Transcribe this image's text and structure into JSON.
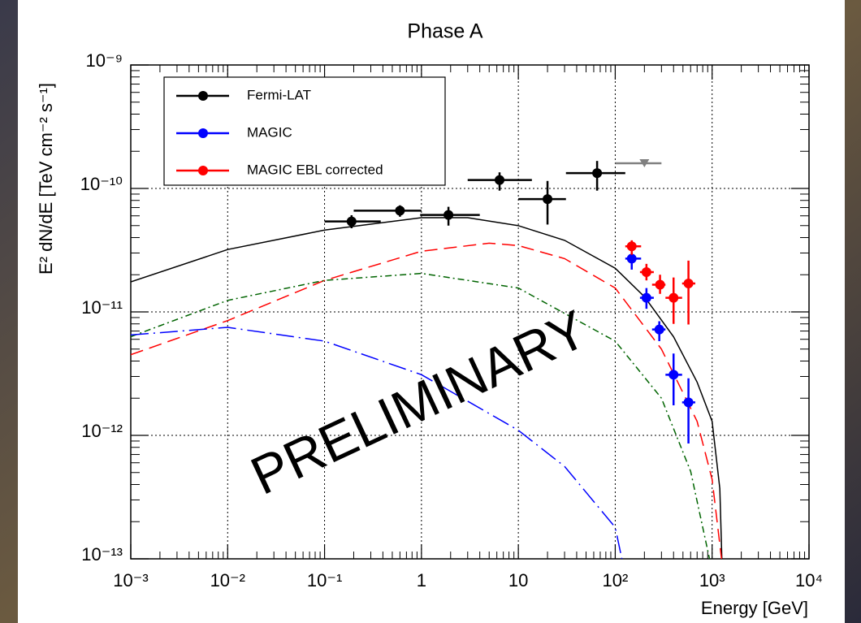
{
  "chart_data": {
    "type": "scatter",
    "title": "Phase A",
    "xlabel": "Energy [GeV]",
    "ylabel": "E² dN/dE [TeV cm⁻² s⁻¹]",
    "annotation": "PRELIMINARY",
    "log_x": true,
    "log_y": true,
    "grid": true,
    "legend": "upper left",
    "xlim": [
      0.001,
      10000
    ],
    "ylim": [
      1e-13,
      1e-09
    ],
    "xticks": [
      {
        "value": 0.001,
        "label": "10⁻³"
      },
      {
        "value": 0.01,
        "label": "10⁻²"
      },
      {
        "value": 0.1,
        "label": "10⁻¹"
      },
      1,
      10,
      {
        "value": 100,
        "label": "10²"
      },
      {
        "value": 1000,
        "label": "10³"
      },
      {
        "value": 10000,
        "label": "10⁴"
      }
    ],
    "yticks": [
      {
        "value": 1e-13,
        "label": "10⁻¹³"
      },
      {
        "value": 1e-12,
        "label": "10⁻¹²"
      },
      {
        "value": 1e-11,
        "label": "10⁻¹¹"
      },
      {
        "value": 1e-10,
        "label": "10⁻¹⁰"
      },
      {
        "value": 1e-09,
        "label": "10⁻⁹"
      }
    ],
    "series": [
      {
        "name": "Fermi-LAT",
        "color": "#000000",
        "x": [
          0.19,
          0.6,
          1.9,
          6.4,
          20,
          65
        ],
        "x_low": [
          0.1,
          0.2,
          0.97,
          3.0,
          10,
          31
        ],
        "x_high": [
          0.38,
          1.0,
          4.0,
          13.8,
          31,
          127
        ],
        "values": [
          5.4e-11,
          6.6e-11,
          6.1e-11,
          1.17e-10,
          8.2e-11,
          1.33e-10
        ],
        "y_low": [
          4.76e-11,
          5.9e-11,
          5e-11,
          9.6e-11,
          5.1e-11,
          9.6e-11
        ],
        "y_high": [
          6.07e-11,
          7.3e-11,
          7.1e-11,
          1.35e-10,
          1.15e-10,
          1.67e-10
        ]
      },
      {
        "name": "MAGIC",
        "color": "#0000ff",
        "x": [
          148,
          210,
          285,
          400,
          570
        ],
        "x_low": [
          127,
          180,
          240,
          330,
          490
        ],
        "x_high": [
          185,
          250,
          330,
          490,
          670
        ],
        "values": [
          2.7e-11,
          1.3e-11,
          7.2e-12,
          3.1e-12,
          1.85e-12
        ],
        "y_low": [
          2.2e-11,
          1.06e-11,
          5.8e-12,
          1.75e-12,
          8.6e-13
        ],
        "y_high": [
          3.1e-11,
          1.56e-11,
          8.4e-12,
          4.6e-12,
          2.9e-12
        ]
      },
      {
        "name": "MAGIC EBL corrected",
        "color": "#ff0000",
        "x": [
          148,
          210,
          290,
          400,
          570
        ],
        "x_low": [
          127,
          180,
          240,
          330,
          490
        ],
        "x_high": [
          185,
          250,
          330,
          490,
          670
        ],
        "values": [
          3.4e-11,
          2.1e-11,
          1.66e-11,
          1.3e-11,
          1.7e-11
        ],
        "y_low": [
          2.9e-11,
          1.8e-11,
          1.4e-11,
          8e-12,
          7.9e-12
        ],
        "y_high": [
          3.8e-11,
          2.45e-11,
          2e-11,
          1.9e-11,
          2.6e-11
        ]
      }
    ],
    "upper_limits": {
      "color": "#808080",
      "x": [
        200
      ],
      "x_low": [
        100
      ],
      "x_high": [
        300
      ],
      "values": [
        1.6e-10
      ]
    },
    "curves": [
      {
        "color": "#000000",
        "dash": "solid",
        "x": [
          0.001,
          0.01,
          0.1,
          1,
          3,
          10,
          30,
          100,
          200,
          400,
          700,
          1000,
          1200,
          1260
        ],
        "values": [
          1.75e-11,
          3.2e-11,
          4.6e-11,
          5.8e-11,
          5.8e-11,
          5e-11,
          3.8e-11,
          2.26e-11,
          1.33e-11,
          6.3e-12,
          2.7e-12,
          1.3e-12,
          3.7e-13,
          1e-13
        ]
      },
      {
        "color": "#ff0000",
        "dash": "dashed",
        "x": [
          0.001,
          0.01,
          0.1,
          1,
          5,
          10,
          30,
          100,
          300,
          700,
          1000,
          1250
        ],
        "values": [
          4.5e-12,
          8.5e-12,
          1.8e-11,
          3.1e-11,
          3.6e-11,
          3.45e-11,
          2.7e-11,
          1.56e-11,
          5e-12,
          1.3e-12,
          4.4e-13,
          1e-13
        ]
      },
      {
        "color": "#006400",
        "dash": "dashdot",
        "x": [
          0.001,
          0.01,
          0.1,
          1,
          10,
          100,
          300,
          600,
          940
        ],
        "values": [
          6.3e-12,
          1.24e-11,
          1.8e-11,
          2.05e-11,
          1.56e-11,
          5.8e-12,
          2e-12,
          5.1e-13,
          1e-13
        ]
      },
      {
        "color": "#0000ff",
        "dash": "longdashdot",
        "x": [
          0.001,
          0.01,
          0.1,
          1,
          10,
          30,
          100,
          117
        ],
        "values": [
          6.5e-12,
          7.5e-12,
          5.8e-12,
          3.1e-12,
          1.1e-12,
          5.6e-13,
          1.8e-13,
          1e-13
        ]
      }
    ]
  }
}
